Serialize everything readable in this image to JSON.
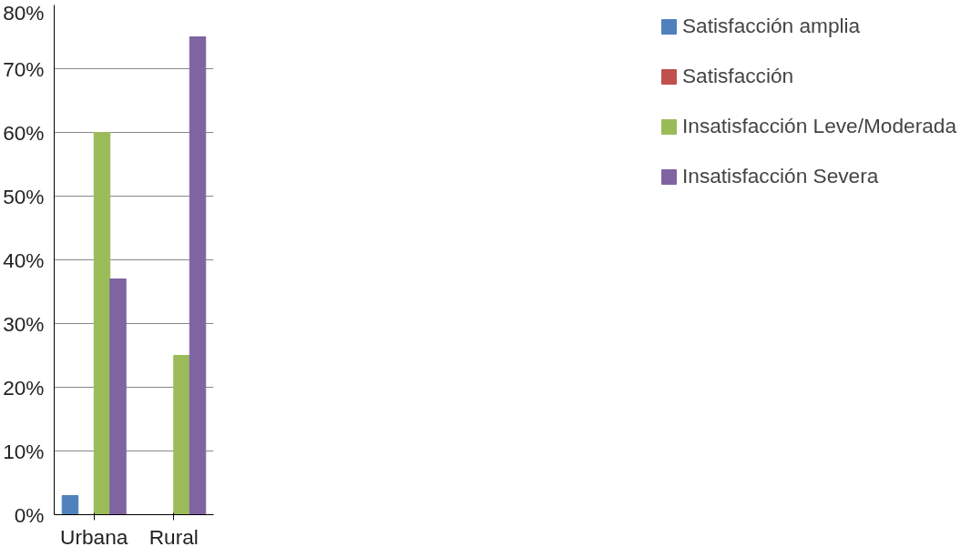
{
  "chart_data": {
    "type": "bar",
    "categories": [
      "Urbana",
      "Rural"
    ],
    "series": [
      {
        "name": "Satisfacción amplia",
        "color": "#4f81bd",
        "values": [
          3,
          0
        ]
      },
      {
        "name": "Satisfacción",
        "color": "#c0504d",
        "values": [
          0,
          0
        ]
      },
      {
        "name": "Insatisfacción Leve/Moderada",
        "color": "#9bbb59",
        "values": [
          60,
          25
        ]
      },
      {
        "name": "Insatisfacción Severa",
        "color": "#8064a2",
        "values": [
          37,
          75
        ]
      }
    ],
    "ylim": [
      0,
      80
    ],
    "yticks": [
      {
        "value": 0,
        "label": "0%"
      },
      {
        "value": 10,
        "label": "10%"
      },
      {
        "value": 20,
        "label": "20%"
      },
      {
        "value": 30,
        "label": "30%"
      },
      {
        "value": 40,
        "label": "40%"
      },
      {
        "value": 50,
        "label": "50%"
      },
      {
        "value": 60,
        "label": "60%"
      },
      {
        "value": 70,
        "label": "70%"
      },
      {
        "value": 80,
        "label": "80%"
      }
    ],
    "grid": "y",
    "legend": "right"
  }
}
